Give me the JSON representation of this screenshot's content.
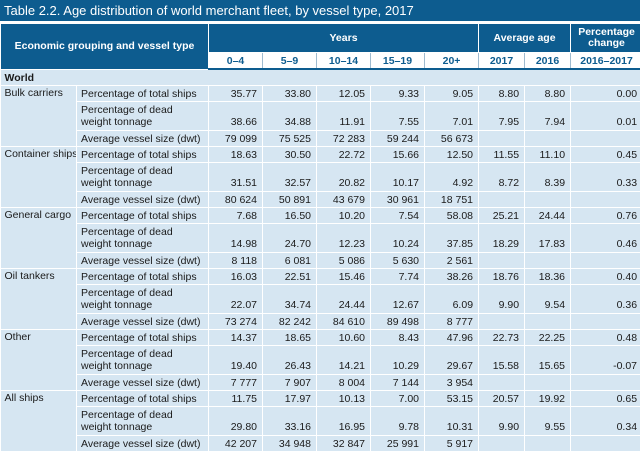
{
  "title": "Table 2.2.  Age distribution of world merchant fleet, by vessel type, 2017",
  "header": {
    "group_label": "Economic grouping and vessel type",
    "years_label": "Years",
    "avg_age_label": "Average age",
    "pct_change_label": "Percentage change",
    "year_bins": [
      "0–4",
      "5–9",
      "10–14",
      "15–19",
      "20+"
    ],
    "avg_years": [
      "2017",
      "2016"
    ],
    "change_period": "2016–2017"
  },
  "world_label": "World",
  "indicators": [
    "Percentage of total ships",
    "Percentage of dead weight tonnage",
    "Average vessel size (dwt)"
  ],
  "groups": [
    {
      "name": "Bulk carriers",
      "rows": [
        {
          "vals": [
            "35.77",
            "33.80",
            "12.05",
            "9.33",
            "9.05"
          ],
          "age2017": "8.80",
          "age2016": "8.80",
          "change": "0.00"
        },
        {
          "vals": [
            "38.66",
            "34.88",
            "11.91",
            "7.55",
            "7.01"
          ],
          "age2017": "7.95",
          "age2016": "7.94",
          "change": "0.01"
        },
        {
          "vals": [
            "79 099",
            "75 525",
            "72 283",
            "59 244",
            "56 673"
          ],
          "age2017": "",
          "age2016": "",
          "change": ""
        }
      ]
    },
    {
      "name": "Container ships",
      "rows": [
        {
          "vals": [
            "18.63",
            "30.50",
            "22.72",
            "15.66",
            "12.50"
          ],
          "age2017": "11.55",
          "age2016": "11.10",
          "change": "0.45"
        },
        {
          "vals": [
            "31.51",
            "32.57",
            "20.82",
            "10.17",
            "4.92"
          ],
          "age2017": "8.72",
          "age2016": "8.39",
          "change": "0.33"
        },
        {
          "vals": [
            "80 624",
            "50 891",
            "43 679",
            "30 961",
            "18 751"
          ],
          "age2017": "",
          "age2016": "",
          "change": ""
        }
      ]
    },
    {
      "name": "General cargo",
      "rows": [
        {
          "vals": [
            "7.68",
            "16.50",
            "10.20",
            "7.54",
            "58.08"
          ],
          "age2017": "25.21",
          "age2016": "24.44",
          "change": "0.76"
        },
        {
          "vals": [
            "14.98",
            "24.70",
            "12.23",
            "10.24",
            "37.85"
          ],
          "age2017": "18.29",
          "age2016": "17.83",
          "change": "0.46"
        },
        {
          "vals": [
            "8 118",
            "6 081",
            "5 086",
            "5 630",
            "2 561"
          ],
          "age2017": "",
          "age2016": "",
          "change": ""
        }
      ]
    },
    {
      "name": "Oil tankers",
      "rows": [
        {
          "vals": [
            "16.03",
            "22.51",
            "15.46",
            "7.74",
            "38.26"
          ],
          "age2017": "18.76",
          "age2016": "18.36",
          "change": "0.40"
        },
        {
          "vals": [
            "22.07",
            "34.74",
            "24.44",
            "12.67",
            "6.09"
          ],
          "age2017": "9.90",
          "age2016": "9.54",
          "change": "0.36"
        },
        {
          "vals": [
            "73 274",
            "82 242",
            "84 610",
            "89 498",
            "8 777"
          ],
          "age2017": "",
          "age2016": "",
          "change": ""
        }
      ]
    },
    {
      "name": "Other",
      "rows": [
        {
          "vals": [
            "14.37",
            "18.65",
            "10.60",
            "8.43",
            "47.96"
          ],
          "age2017": "22.73",
          "age2016": "22.25",
          "change": "0.48"
        },
        {
          "vals": [
            "19.40",
            "26.43",
            "14.21",
            "10.29",
            "29.67"
          ],
          "age2017": "15.58",
          "age2016": "15.65",
          "change": "-0.07"
        },
        {
          "vals": [
            "7 777",
            "7 907",
            "8 004",
            "7 144",
            "3 954"
          ],
          "age2017": "",
          "age2016": "",
          "change": ""
        }
      ]
    },
    {
      "name": "All ships",
      "rows": [
        {
          "vals": [
            "11.75",
            "17.97",
            "10.13",
            "7.00",
            "53.15"
          ],
          "age2017": "20.57",
          "age2016": "19.92",
          "change": "0.65"
        },
        {
          "vals": [
            "29.80",
            "33.16",
            "16.95",
            "9.78",
            "10.31"
          ],
          "age2017": "9.90",
          "age2016": "9.55",
          "change": "0.34"
        },
        {
          "vals": [
            "42 207",
            "34 948",
            "32 847",
            "25 991",
            "5 917"
          ],
          "age2017": "",
          "age2016": "",
          "change": ""
        }
      ]
    }
  ],
  "colors": {
    "header_bg": "#0d5c8f",
    "row_bg": "#d6e6f2"
  }
}
